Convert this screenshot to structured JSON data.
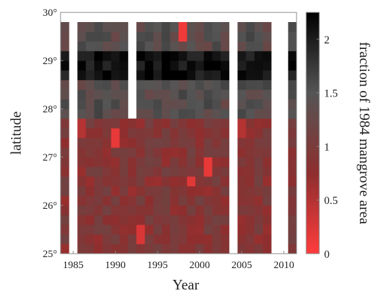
{
  "chart_data": {
    "type": "heatmap",
    "xlabel": "Year",
    "ylabel": "latitude",
    "colorbar_label": "fraction of 1984 mangrove area",
    "x_ticks": [
      "1985",
      "1990",
      "1995",
      "2000",
      "2005",
      "2010"
    ],
    "x_tick_values": [
      1985,
      1990,
      1995,
      2000,
      2005,
      2010
    ],
    "y_ticks": [
      "25°",
      "26°",
      "27°",
      "28°",
      "29°",
      "30°"
    ],
    "y_tick_values": [
      25,
      26,
      27,
      28,
      29,
      30
    ],
    "colorbar_ticks": [
      "0",
      "0.5",
      "1",
      "1.5",
      "2"
    ],
    "colorbar_tick_values": [
      0,
      0.5,
      1,
      1.5,
      2
    ],
    "xlim": [
      1983.5,
      2011.5
    ],
    "ylim": [
      25,
      30
    ],
    "clim": [
      0,
      2.25
    ],
    "colormap": [
      "#ff3c3c",
      "#8e2e2e",
      "#555555",
      "#000000"
    ],
    "years_with_data": [
      1984,
      1986,
      1987,
      1988,
      1989,
      1990,
      1991,
      1992,
      1993,
      1994,
      1995,
      1996,
      1997,
      1998,
      1999,
      2000,
      2001,
      2002,
      2003,
      2005,
      2006,
      2007,
      2008,
      2011
    ],
    "lat_bin_size": 0.2,
    "missing_block": {
      "years": [
        1992
      ],
      "lat_range": [
        27.9,
        29.8
      ]
    },
    "summary_by_lat_band": [
      {
        "lat_range": [
          25.0,
          27.9
        ],
        "typical_value": 0.9
      },
      {
        "lat_range": [
          27.9,
          28.7
        ],
        "typical_value": 1.45
      },
      {
        "lat_range": [
          28.7,
          29.2
        ],
        "typical_value": 2.1
      },
      {
        "lat_range": [
          29.2,
          29.85
        ],
        "typical_value": 1.45
      }
    ],
    "notable_low_values": [
      {
        "year": 1998,
        "lat": 29.7,
        "value": 0.1
      },
      {
        "year": 1990,
        "lat": 27.4,
        "value": 0.15
      },
      {
        "year": 1999,
        "lat": 26.5,
        "value": 0.2
      },
      {
        "year": 2001,
        "lat": 26.9,
        "value": 0.15
      },
      {
        "year": 1993,
        "lat": 25.4,
        "value": 0.25
      },
      {
        "year": 1986,
        "lat": 27.6,
        "value": 0.5
      },
      {
        "year": 2005,
        "lat": 27.6,
        "value": 0.5
      }
    ]
  }
}
